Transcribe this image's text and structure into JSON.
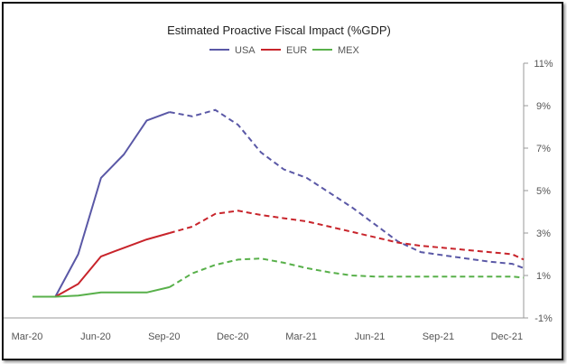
{
  "chart_data": {
    "type": "line",
    "title": "Estimated Proactive Fiscal Impact (%GDP)",
    "xlabel": "",
    "ylabel": "",
    "x_tick_labels": [
      "Mar-20",
      "Jun-20",
      "Sep-20",
      "Dec-20",
      "Mar-21",
      "Jun-21",
      "Sep-21",
      "Dec-21"
    ],
    "x_tick_months": [
      0,
      3,
      6,
      9,
      12,
      15,
      18,
      21
    ],
    "y_tick_labels": [
      "11%",
      "9%",
      "7%",
      "5%",
      "3%",
      "1%",
      "-1%"
    ],
    "y_tick_values": [
      11,
      9,
      7,
      5,
      3,
      1,
      -1
    ],
    "ylim": [
      -1,
      11
    ],
    "xlim_months": [
      0,
      21.5
    ],
    "y_axis_position": "right",
    "grid": false,
    "legend_position": "top-center",
    "series": [
      {
        "name": "USA",
        "color": "#5a58a6",
        "solid_months": [
          0,
          0.6,
          1,
          2,
          3,
          4,
          5,
          6
        ],
        "solid_values": [
          0,
          0,
          0,
          2.0,
          5.6,
          6.7,
          8.3,
          8.7
        ],
        "dashed_months": [
          6,
          7,
          8,
          9,
          10,
          11,
          12,
          13,
          14,
          15,
          16,
          17,
          18,
          19,
          20,
          21,
          21.5
        ],
        "dashed_values": [
          8.7,
          8.5,
          8.8,
          8.1,
          6.8,
          6.0,
          5.6,
          4.9,
          4.2,
          3.4,
          2.6,
          2.1,
          1.95,
          1.8,
          1.65,
          1.55,
          1.35
        ]
      },
      {
        "name": "EUR",
        "color": "#c8242b",
        "solid_months": [
          0,
          0.6,
          1,
          2,
          3,
          4,
          5,
          6
        ],
        "solid_values": [
          0,
          0,
          0,
          0.6,
          1.9,
          2.3,
          2.7,
          3.0
        ],
        "dashed_months": [
          6,
          7,
          8,
          9,
          10,
          11,
          12,
          13,
          14,
          15,
          16,
          17,
          18,
          19,
          20,
          21,
          21.5
        ],
        "dashed_values": [
          3.0,
          3.3,
          3.9,
          4.05,
          3.85,
          3.7,
          3.55,
          3.3,
          3.05,
          2.8,
          2.55,
          2.4,
          2.3,
          2.2,
          2.1,
          2.0,
          1.75
        ]
      },
      {
        "name": "MEX",
        "color": "#58b04a",
        "solid_months": [
          0,
          0.6,
          1,
          2,
          3,
          4,
          5,
          6
        ],
        "solid_values": [
          0,
          0,
          0,
          0.05,
          0.2,
          0.2,
          0.2,
          0.45
        ],
        "dashed_months": [
          6,
          7,
          8,
          9,
          10,
          11,
          12,
          13,
          14,
          15,
          16,
          17,
          18,
          19,
          20,
          21,
          21.5
        ],
        "dashed_values": [
          0.45,
          1.1,
          1.5,
          1.75,
          1.8,
          1.6,
          1.35,
          1.15,
          1.0,
          0.95,
          0.95,
          0.95,
          0.95,
          0.95,
          0.95,
          0.95,
          0.9
        ]
      }
    ]
  }
}
